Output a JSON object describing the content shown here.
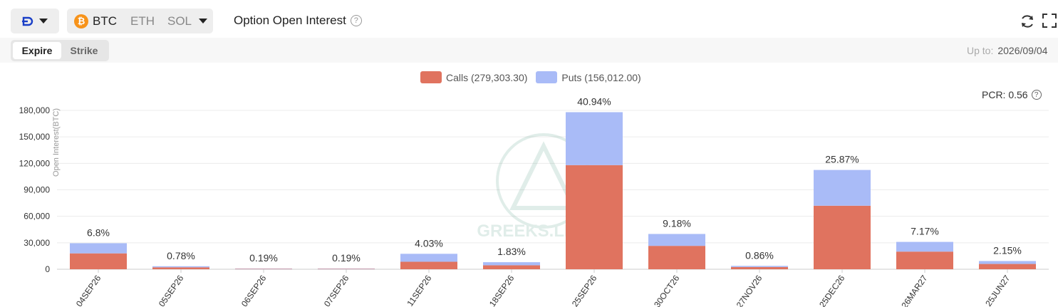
{
  "toolbar": {
    "exchange_icon": "deribit-logo-icon",
    "assets": [
      "BTC",
      "ETH",
      "SOL"
    ],
    "selected_asset": "BTC",
    "title": "Option Open Interest",
    "help_glyph": "?"
  },
  "tabs": {
    "expire_label": "Expire",
    "strike_label": "Strike",
    "selected": "Expire"
  },
  "upto": {
    "label": "Up to:",
    "date": "2026/09/04"
  },
  "legend": {
    "calls_label": "Calls (279,303.30)",
    "puts_label": "Puts (156,012.00)"
  },
  "pcr": {
    "label": "PCR: 0.56"
  },
  "watermark": "GREEKS.LIVE",
  "colors": {
    "calls": "#e0735f",
    "puts": "#a9bbf7",
    "grid": "#ececec",
    "axis_text": "#333333"
  },
  "chart_data": {
    "type": "bar",
    "stacked": true,
    "categories": [
      "04SEP26",
      "05SEP26",
      "06SEP26",
      "07SEP26",
      "11SEP26",
      "18SEP26",
      "25SEP26",
      "30OCT26",
      "27NOV26",
      "25DEC26",
      "26MAR27",
      "25JUN27"
    ],
    "series": [
      {
        "name": "Calls",
        "values": [
          18000,
          2200,
          500,
          500,
          8500,
          4500,
          118000,
          26500,
          2500,
          72000,
          20000,
          6000
        ]
      },
      {
        "name": "Puts",
        "values": [
          11500,
          1200,
          300,
          300,
          9000,
          3500,
          60000,
          13500,
          1300,
          40500,
          11000,
          3300
        ]
      }
    ],
    "data_labels": [
      "6.8%",
      "0.78%",
      "0.19%",
      "0.19%",
      "4.03%",
      "1.83%",
      "40.94%",
      "9.18%",
      "0.86%",
      "25.87%",
      "7.17%",
      "2.15%"
    ],
    "ylabel": "Open Interest(BTC)",
    "ylim": [
      0,
      180000
    ],
    "yticks": [
      0,
      30000,
      60000,
      90000,
      120000,
      150000,
      180000
    ],
    "ytick_labels": [
      "0",
      "30,000",
      "60,000",
      "90,000",
      "120,000",
      "150,000",
      "180,000"
    ],
    "grid": true,
    "legend_position": "top-center"
  }
}
